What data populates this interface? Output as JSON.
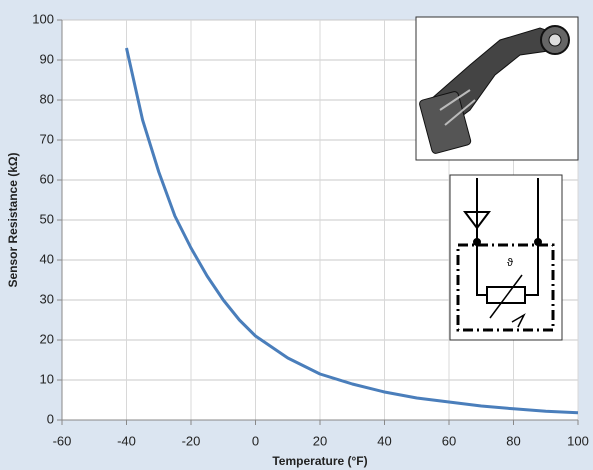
{
  "chart_data": {
    "type": "line",
    "x_label": "Temperature (°F)",
    "y_label": "Sensor Resistance (kΩ)",
    "x": [
      -40,
      -35,
      -30,
      -25,
      -20,
      -15,
      -10,
      -5,
      0,
      10,
      20,
      30,
      40,
      50,
      60,
      70,
      80,
      90,
      100
    ],
    "values": [
      93,
      75,
      62,
      51,
      43,
      36,
      30,
      25,
      21,
      15.5,
      11.5,
      9,
      7,
      5.5,
      4.5,
      3.5,
      2.8,
      2.2,
      1.8
    ],
    "color": "#4a7ebb",
    "xlim": [
      -60,
      100
    ],
    "xticks": [
      -60,
      -40,
      -20,
      0,
      20,
      40,
      60,
      80,
      100
    ],
    "ylim": [
      0,
      100
    ],
    "yticks": [
      0,
      10,
      20,
      30,
      40,
      50,
      60,
      70,
      80,
      90,
      100
    ],
    "grid": true
  }
}
